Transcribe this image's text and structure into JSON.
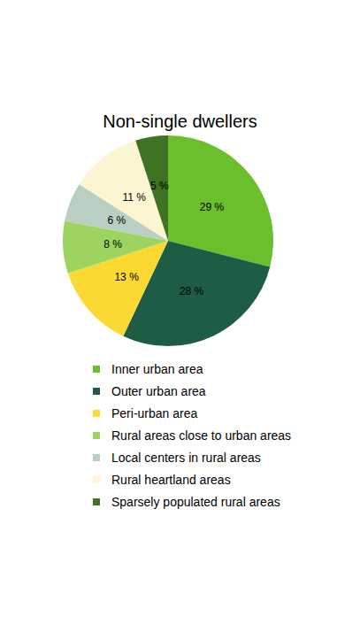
{
  "chart_data": {
    "type": "pie",
    "title": "Non-single dwellers",
    "categories": [
      "Inner urban area",
      "Outer urban area",
      "Peri-urban area",
      "Rural areas close to urban areas",
      "Local centers in rural areas",
      "Rural heartland areas",
      "Sparsely populated rural areas"
    ],
    "values": [
      29,
      28,
      13,
      8,
      6,
      11,
      5
    ],
    "value_labels": [
      "29 %",
      "28 %",
      "13 %",
      "8 %",
      "6 %",
      "11 %",
      "5 %"
    ],
    "colors": [
      "#6cbf2c",
      "#1f5c45",
      "#fbd933",
      "#9cd45f",
      "#b8cfc2",
      "#fdf5d2",
      "#3f7222"
    ],
    "data_labels": true,
    "legend": "bottom"
  }
}
